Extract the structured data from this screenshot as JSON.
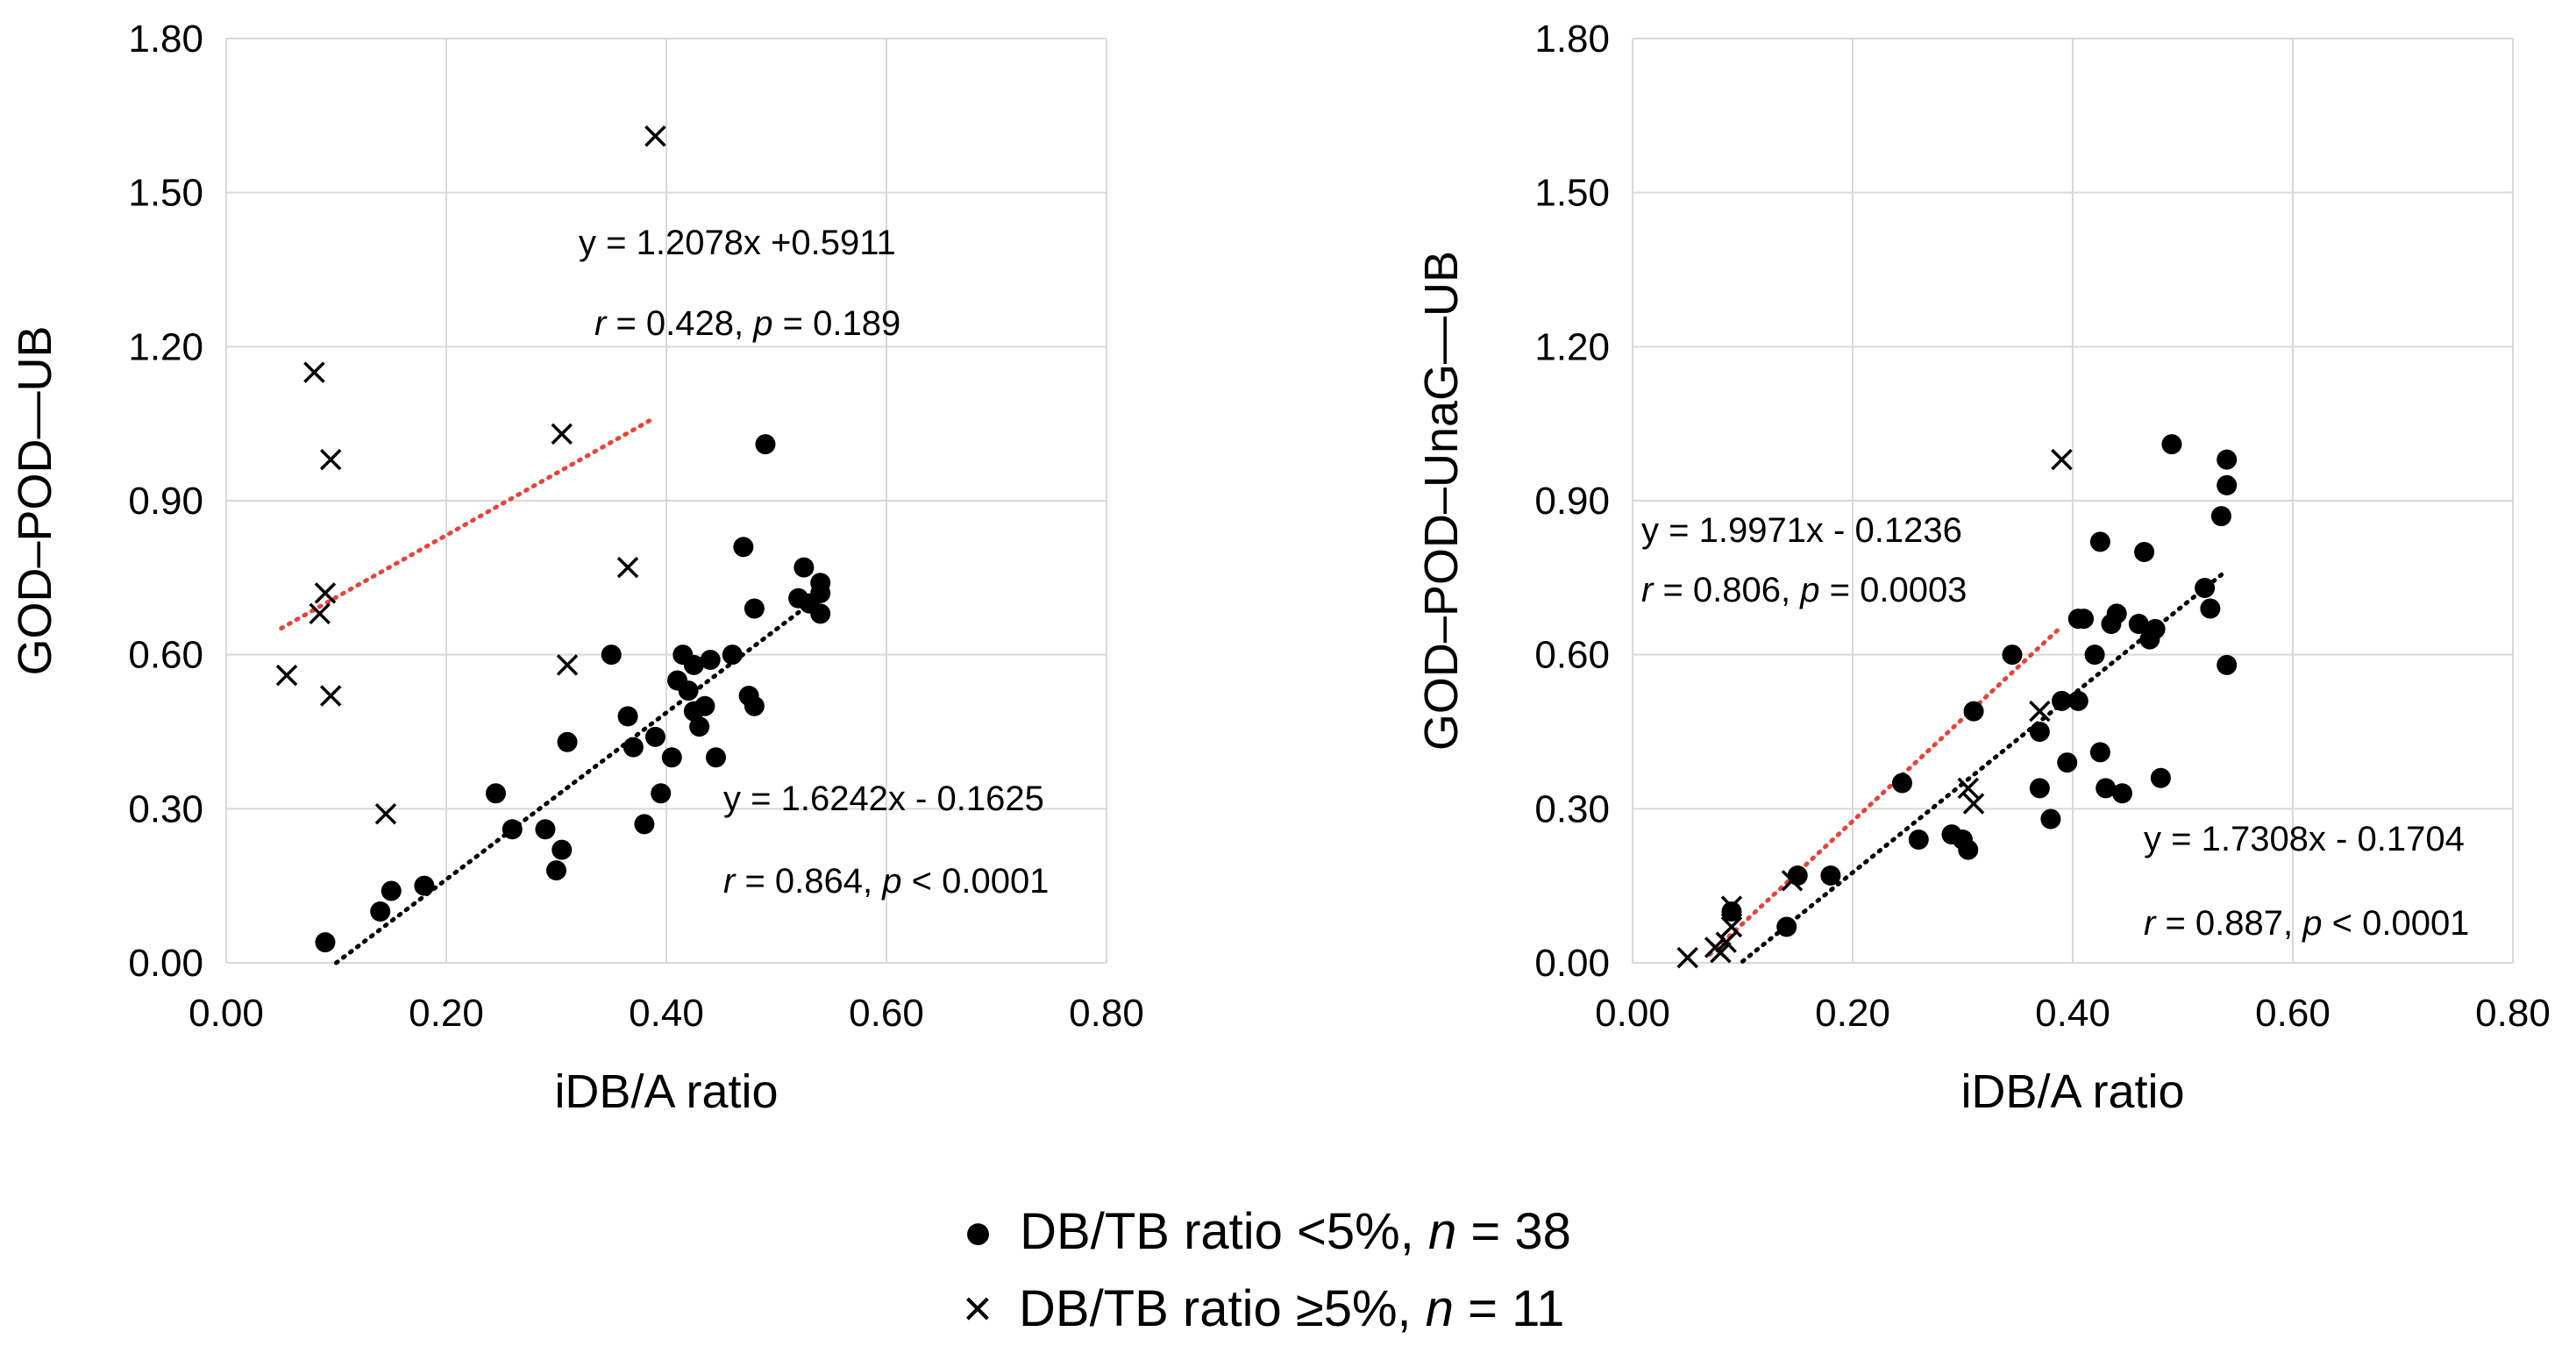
{
  "chart_data": [
    {
      "type": "scatter",
      "xlabel": "iDB/A ratio",
      "ylabel": "GOD–POD—UB",
      "xlim": [
        0,
        0.8
      ],
      "ylim": [
        0,
        1.8
      ],
      "x_ticks": [
        "0.00",
        "0.20",
        "0.40",
        "0.60",
        "0.80"
      ],
      "y_ticks": [
        "0.00",
        "0.30",
        "0.60",
        "0.90",
        "1.20",
        "1.50",
        "1.80"
      ],
      "grid": true,
      "series": [
        {
          "name": "DB/TB ratio <5%, n = 38",
          "marker": "circle",
          "color": "#000000",
          "points": [
            [
              0.09,
              0.04
            ],
            [
              0.14,
              0.1
            ],
            [
              0.15,
              0.14
            ],
            [
              0.18,
              0.15
            ],
            [
              0.245,
              0.33
            ],
            [
              0.26,
              0.26
            ],
            [
              0.29,
              0.26
            ],
            [
              0.3,
              0.18
            ],
            [
              0.305,
              0.22
            ],
            [
              0.31,
              0.43
            ],
            [
              0.35,
              0.6
            ],
            [
              0.365,
              0.48
            ],
            [
              0.37,
              0.42
            ],
            [
              0.38,
              0.27
            ],
            [
              0.39,
              0.44
            ],
            [
              0.395,
              0.33
            ],
            [
              0.405,
              0.4
            ],
            [
              0.41,
              0.55
            ],
            [
              0.415,
              0.6
            ],
            [
              0.42,
              0.53
            ],
            [
              0.425,
              0.49
            ],
            [
              0.425,
              0.58
            ],
            [
              0.43,
              0.46
            ],
            [
              0.435,
              0.5
            ],
            [
              0.44,
              0.59
            ],
            [
              0.445,
              0.4
            ],
            [
              0.46,
              0.6
            ],
            [
              0.47,
              0.81
            ],
            [
              0.475,
              0.52
            ],
            [
              0.48,
              0.5
            ],
            [
              0.48,
              0.69
            ],
            [
              0.49,
              1.01
            ],
            [
              0.52,
              0.71
            ],
            [
              0.525,
              0.77
            ],
            [
              0.53,
              0.7
            ],
            [
              0.54,
              0.74
            ],
            [
              0.54,
              0.72
            ],
            [
              0.54,
              0.68
            ]
          ]
        },
        {
          "name": "DB/TB ratio ≥5%, n = 11",
          "marker": "x",
          "color": "#000000",
          "points": [
            [
              0.055,
              0.56
            ],
            [
              0.08,
              1.15
            ],
            [
              0.085,
              0.68
            ],
            [
              0.09,
              0.72
            ],
            [
              0.095,
              0.52
            ],
            [
              0.095,
              0.98
            ],
            [
              0.145,
              0.29
            ],
            [
              0.305,
              1.03
            ],
            [
              0.31,
              0.58
            ],
            [
              0.365,
              0.77
            ],
            [
              0.39,
              1.61
            ]
          ]
        }
      ],
      "trendlines": [
        {
          "series": "DB/TB ratio ≥5%, n = 11",
          "color": "#e8433a",
          "style": "dotted",
          "slope": 1.2078,
          "intercept": 0.5911,
          "x_range": [
            0.05,
            0.39
          ],
          "equation": "y = 1.2078x +0.5911",
          "r_value": "0.428",
          "p_value": "0.189",
          "p_op": "="
        },
        {
          "series": "DB/TB ratio <5%, n = 38",
          "color": "#000000",
          "style": "dotted",
          "slope": 1.6242,
          "intercept": -0.1625,
          "x_range": [
            0.1,
            0.54
          ],
          "equation": "y = 1.6242x - 0.1625",
          "r_value": "0.864",
          "p_value": "0.0001",
          "p_op": "<"
        }
      ]
    },
    {
      "type": "scatter",
      "xlabel": "iDB/A ratio",
      "ylabel": "GOD–POD–UnaG—UB",
      "xlim": [
        0,
        0.8
      ],
      "ylim": [
        0,
        1.8
      ],
      "x_ticks": [
        "0.00",
        "0.20",
        "0.40",
        "0.60",
        "0.80"
      ],
      "y_ticks": [
        "0.00",
        "0.30",
        "0.60",
        "0.90",
        "1.20",
        "1.50",
        "1.80"
      ],
      "grid": true,
      "series": [
        {
          "name": "DB/TB ratio <5%, n = 38",
          "marker": "circle",
          "color": "#000000",
          "points": [
            [
              0.09,
              0.1
            ],
            [
              0.14,
              0.07
            ],
            [
              0.15,
              0.17
            ],
            [
              0.18,
              0.17
            ],
            [
              0.245,
              0.35
            ],
            [
              0.26,
              0.24
            ],
            [
              0.29,
              0.25
            ],
            [
              0.3,
              0.24
            ],
            [
              0.305,
              0.22
            ],
            [
              0.31,
              0.49
            ],
            [
              0.345,
              0.6
            ],
            [
              0.37,
              0.34
            ],
            [
              0.37,
              0.45
            ],
            [
              0.38,
              0.28
            ],
            [
              0.39,
              0.51
            ],
            [
              0.395,
              0.39
            ],
            [
              0.405,
              0.51
            ],
            [
              0.405,
              0.67
            ],
            [
              0.41,
              0.67
            ],
            [
              0.42,
              0.6
            ],
            [
              0.425,
              0.41
            ],
            [
              0.425,
              0.82
            ],
            [
              0.43,
              0.34
            ],
            [
              0.435,
              0.66
            ],
            [
              0.44,
              0.68
            ],
            [
              0.445,
              0.33
            ],
            [
              0.46,
              0.66
            ],
            [
              0.465,
              0.8
            ],
            [
              0.47,
              0.63
            ],
            [
              0.475,
              0.65
            ],
            [
              0.48,
              0.36
            ],
            [
              0.49,
              1.01
            ],
            [
              0.52,
              0.73
            ],
            [
              0.525,
              0.69
            ],
            [
              0.535,
              0.87
            ],
            [
              0.54,
              0.93
            ],
            [
              0.54,
              0.98
            ],
            [
              0.54,
              0.58
            ]
          ]
        },
        {
          "name": "DB/TB ratio ≥5%, n = 11",
          "marker": "x",
          "color": "#000000",
          "points": [
            [
              0.05,
              0.01
            ],
            [
              0.075,
              0.03
            ],
            [
              0.08,
              0.02
            ],
            [
              0.085,
              0.04
            ],
            [
              0.09,
              0.11
            ],
            [
              0.09,
              0.07
            ],
            [
              0.145,
              0.16
            ],
            [
              0.305,
              0.34
            ],
            [
              0.31,
              0.31
            ],
            [
              0.37,
              0.49
            ],
            [
              0.39,
              0.98
            ]
          ]
        }
      ],
      "trendlines": [
        {
          "series": "DB/TB ratio ≥5%, n = 11",
          "color": "#e8433a",
          "style": "dotted",
          "slope": 1.9971,
          "intercept": -0.1236,
          "x_range": [
            0.07,
            0.39
          ],
          "equation": "y = 1.9971x - 0.1236",
          "r_value": "0.806",
          "p_value": "0.0003",
          "p_op": "="
        },
        {
          "series": "DB/TB ratio <5%, n = 38",
          "color": "#000000",
          "style": "dotted",
          "slope": 1.7308,
          "intercept": -0.1704,
          "x_range": [
            0.1,
            0.54
          ],
          "equation": "y = 1.7308x - 0.1704",
          "r_value": "0.887",
          "p_value": "0.0001",
          "p_op": "<"
        }
      ]
    }
  ],
  "legend": {
    "items": [
      {
        "marker": "●",
        "text_before": "DB/TB ratio <5%, ",
        "n_label": "n",
        "n_text": " = 38"
      },
      {
        "marker": "×",
        "text_before": "DB/TB ratio ≥5%, ",
        "n_label": "n",
        "n_text": " = 11"
      }
    ]
  },
  "stat_labels": {
    "r": "r",
    "p": "p"
  }
}
